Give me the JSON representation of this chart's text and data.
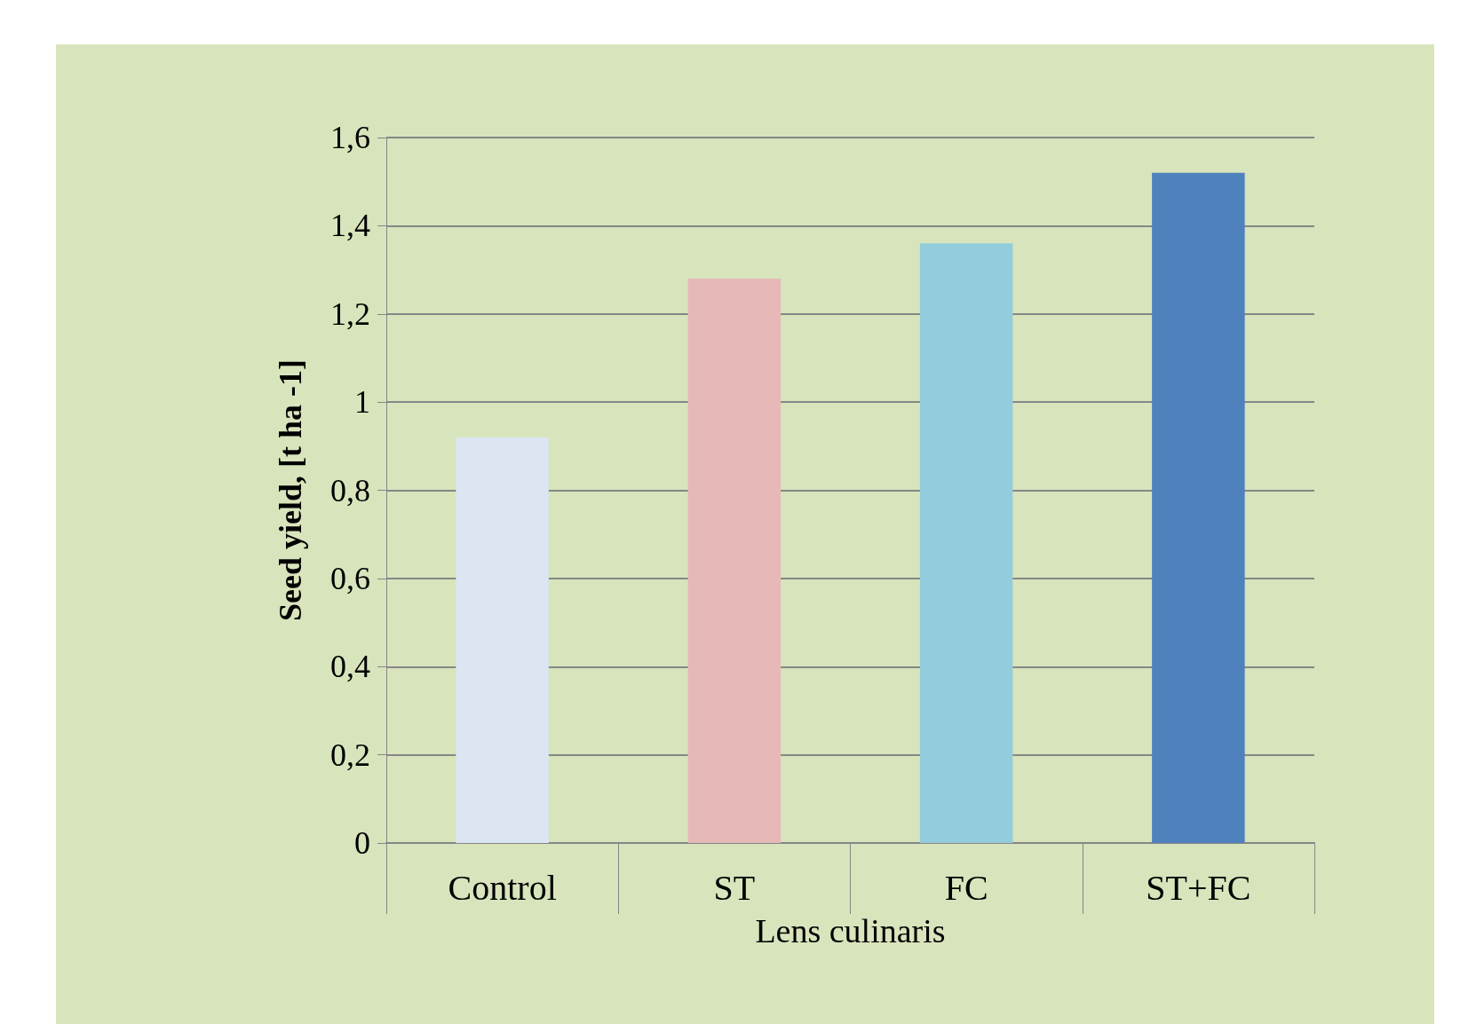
{
  "chart_data": {
    "type": "bar",
    "xlabel": "Lens culinaris",
    "ylabel": "Seed yield, [t ha -1]",
    "categories": [
      "Control",
      "ST",
      "FC",
      "ST+FC"
    ],
    "values": [
      0.92,
      1.28,
      1.36,
      1.52
    ],
    "colors": [
      "#dce6f2",
      "#e6b9b8",
      "#93cddd",
      "#4f81bd"
    ],
    "ylim": [
      0,
      1.6
    ],
    "yticks": [
      {
        "value": 0,
        "label": "0"
      },
      {
        "value": 0.2,
        "label": "0,2"
      },
      {
        "value": 0.4,
        "label": "0,4"
      },
      {
        "value": 0.6,
        "label": "0,6"
      },
      {
        "value": 0.8,
        "label": "0,8"
      },
      {
        "value": 1,
        "label": "1"
      },
      {
        "value": 1.2,
        "label": "1,2"
      },
      {
        "value": 1.4,
        "label": "1,4"
      },
      {
        "value": 1.6,
        "label": "1,6"
      }
    ],
    "grid": "y"
  }
}
